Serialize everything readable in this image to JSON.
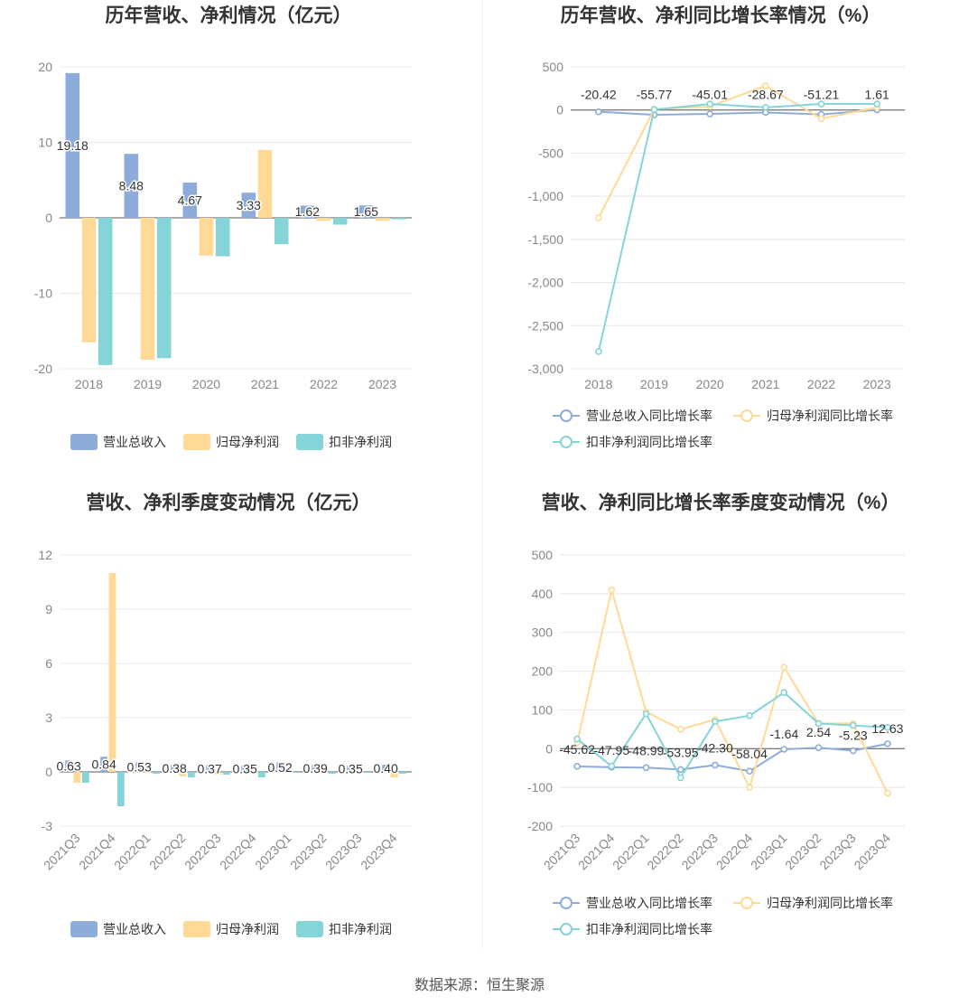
{
  "colors": {
    "revenue": "#8eacd9",
    "net_profit": "#ffd996",
    "deducted": "#84d4d8",
    "divider": "#eeeeee",
    "grid": "#e6e8ee",
    "zero": "#555555"
  },
  "source": "数据来源：恒生聚源",
  "chart_data": [
    {
      "type": "bar",
      "title": "历年营收、净利情况（亿元）",
      "categories": [
        "2018",
        "2019",
        "2020",
        "2021",
        "2022",
        "2023"
      ],
      "ylim": [
        -20,
        20
      ],
      "yticks": [
        "20",
        "10",
        "0",
        "-10",
        "-20"
      ],
      "legend": [
        "营业总收入",
        "归母净利润",
        "扣非净利润"
      ],
      "label_series": 0,
      "labels": [
        "19.18",
        "8.48",
        "4.67",
        "3.33",
        "1.62",
        "1.65"
      ],
      "series": [
        {
          "name": "营业总收入",
          "values": [
            19.18,
            8.48,
            4.67,
            3.33,
            1.62,
            1.65
          ]
        },
        {
          "name": "归母净利润",
          "values": [
            -16.5,
            -18.8,
            -5.0,
            9.0,
            -0.4,
            -0.4
          ]
        },
        {
          "name": "扣非净利润",
          "values": [
            -19.5,
            -18.6,
            -5.1,
            -3.5,
            -0.9,
            -0.2
          ]
        }
      ]
    },
    {
      "type": "line",
      "title": "历年营收、净利同比增长率情况（%）",
      "categories": [
        "2018",
        "2019",
        "2020",
        "2021",
        "2022",
        "2023"
      ],
      "ylim": [
        -3000,
        500
      ],
      "yticks": [
        "500",
        "0",
        "-500",
        "-1,000",
        "-1,500",
        "-2,000",
        "-2,500",
        "-3,000"
      ],
      "legend": [
        "营业总收入同比增长率",
        "归母净利润同比增长率",
        "扣非净利润同比增长率"
      ],
      "label_series": 0,
      "labels": [
        "-20.42",
        "-55.77",
        "-45.01",
        "-28.67",
        "-51.21",
        "1.61"
      ],
      "series": [
        {
          "name": "营业总收入同比增长率",
          "values": [
            -20.42,
            -55.77,
            -45.01,
            -28.67,
            -51.21,
            1.61
          ]
        },
        {
          "name": "归母净利润同比增长率",
          "values": [
            -1250,
            10,
            40,
            280,
            -100,
            30
          ]
        },
        {
          "name": "扣非净利润同比增长率",
          "values": [
            -2800,
            5,
            70,
            30,
            70,
            70
          ]
        }
      ]
    },
    {
      "type": "bar",
      "title": "营收、净利季度变动情况（亿元）",
      "categories": [
        "2021Q3",
        "2021Q4",
        "2022Q1",
        "2022Q2",
        "2022Q3",
        "2022Q4",
        "2023Q1",
        "2023Q2",
        "2023Q3",
        "2023Q4"
      ],
      "ylim": [
        -3,
        12
      ],
      "yticks": [
        "12",
        "9",
        "6",
        "3",
        "0",
        "-3"
      ],
      "legend": [
        "营业总收入",
        "归母净利润",
        "扣非净利润"
      ],
      "label_series": 0,
      "labels": [
        "0.63",
        "0.84",
        "0.53",
        "0.38",
        "0.37",
        "0.35",
        "0.52",
        "0.39",
        "0.35",
        "0.40"
      ],
      "series": [
        {
          "name": "营业总收入",
          "values": [
            0.63,
            0.84,
            0.53,
            0.38,
            0.37,
            0.35,
            0.52,
            0.39,
            0.35,
            0.4
          ]
        },
        {
          "name": "归母净利润",
          "values": [
            -0.6,
            11.0,
            -0.05,
            -0.25,
            -0.15,
            -0.1,
            -0.05,
            -0.05,
            -0.05,
            -0.3
          ]
        },
        {
          "name": "扣非净利润",
          "values": [
            -0.6,
            -1.9,
            -0.1,
            -0.3,
            -0.15,
            -0.3,
            -0.05,
            -0.1,
            -0.05,
            -0.1
          ]
        }
      ]
    },
    {
      "type": "line",
      "title": "营收、净利同比增长率季度变动情况（%）",
      "categories": [
        "2021Q3",
        "2021Q4",
        "2022Q1",
        "2022Q2",
        "2022Q3",
        "2022Q4",
        "2023Q1",
        "2023Q2",
        "2023Q3",
        "2023Q4"
      ],
      "ylim": [
        -200,
        500
      ],
      "yticks": [
        "500",
        "400",
        "300",
        "200",
        "100",
        "0",
        "-100",
        "-200"
      ],
      "legend": [
        "营业总收入同比增长率",
        "归母净利润同比增长率",
        "扣非净利润同比增长率"
      ],
      "label_series": 0,
      "labels": [
        "-45.62",
        "-47.95",
        "-48.99",
        "-53.95",
        "-42.30",
        "-58.04",
        "-1.64",
        "2.54",
        "-5.23",
        "12.63"
      ],
      "series": [
        {
          "name": "营业总收入同比增长率",
          "values": [
            -45.62,
            -47.95,
            -48.99,
            -53.95,
            -42.3,
            -58.04,
            -1.64,
            2.54,
            -5.23,
            12.63
          ]
        },
        {
          "name": "归母净利润同比增长率",
          "values": [
            15,
            410,
            95,
            50,
            75,
            -100,
            210,
            65,
            65,
            -115
          ]
        },
        {
          "name": "扣非净利润同比增长率",
          "values": [
            25,
            -45,
            90,
            -75,
            70,
            85,
            145,
            65,
            60,
            55
          ]
        }
      ]
    }
  ]
}
